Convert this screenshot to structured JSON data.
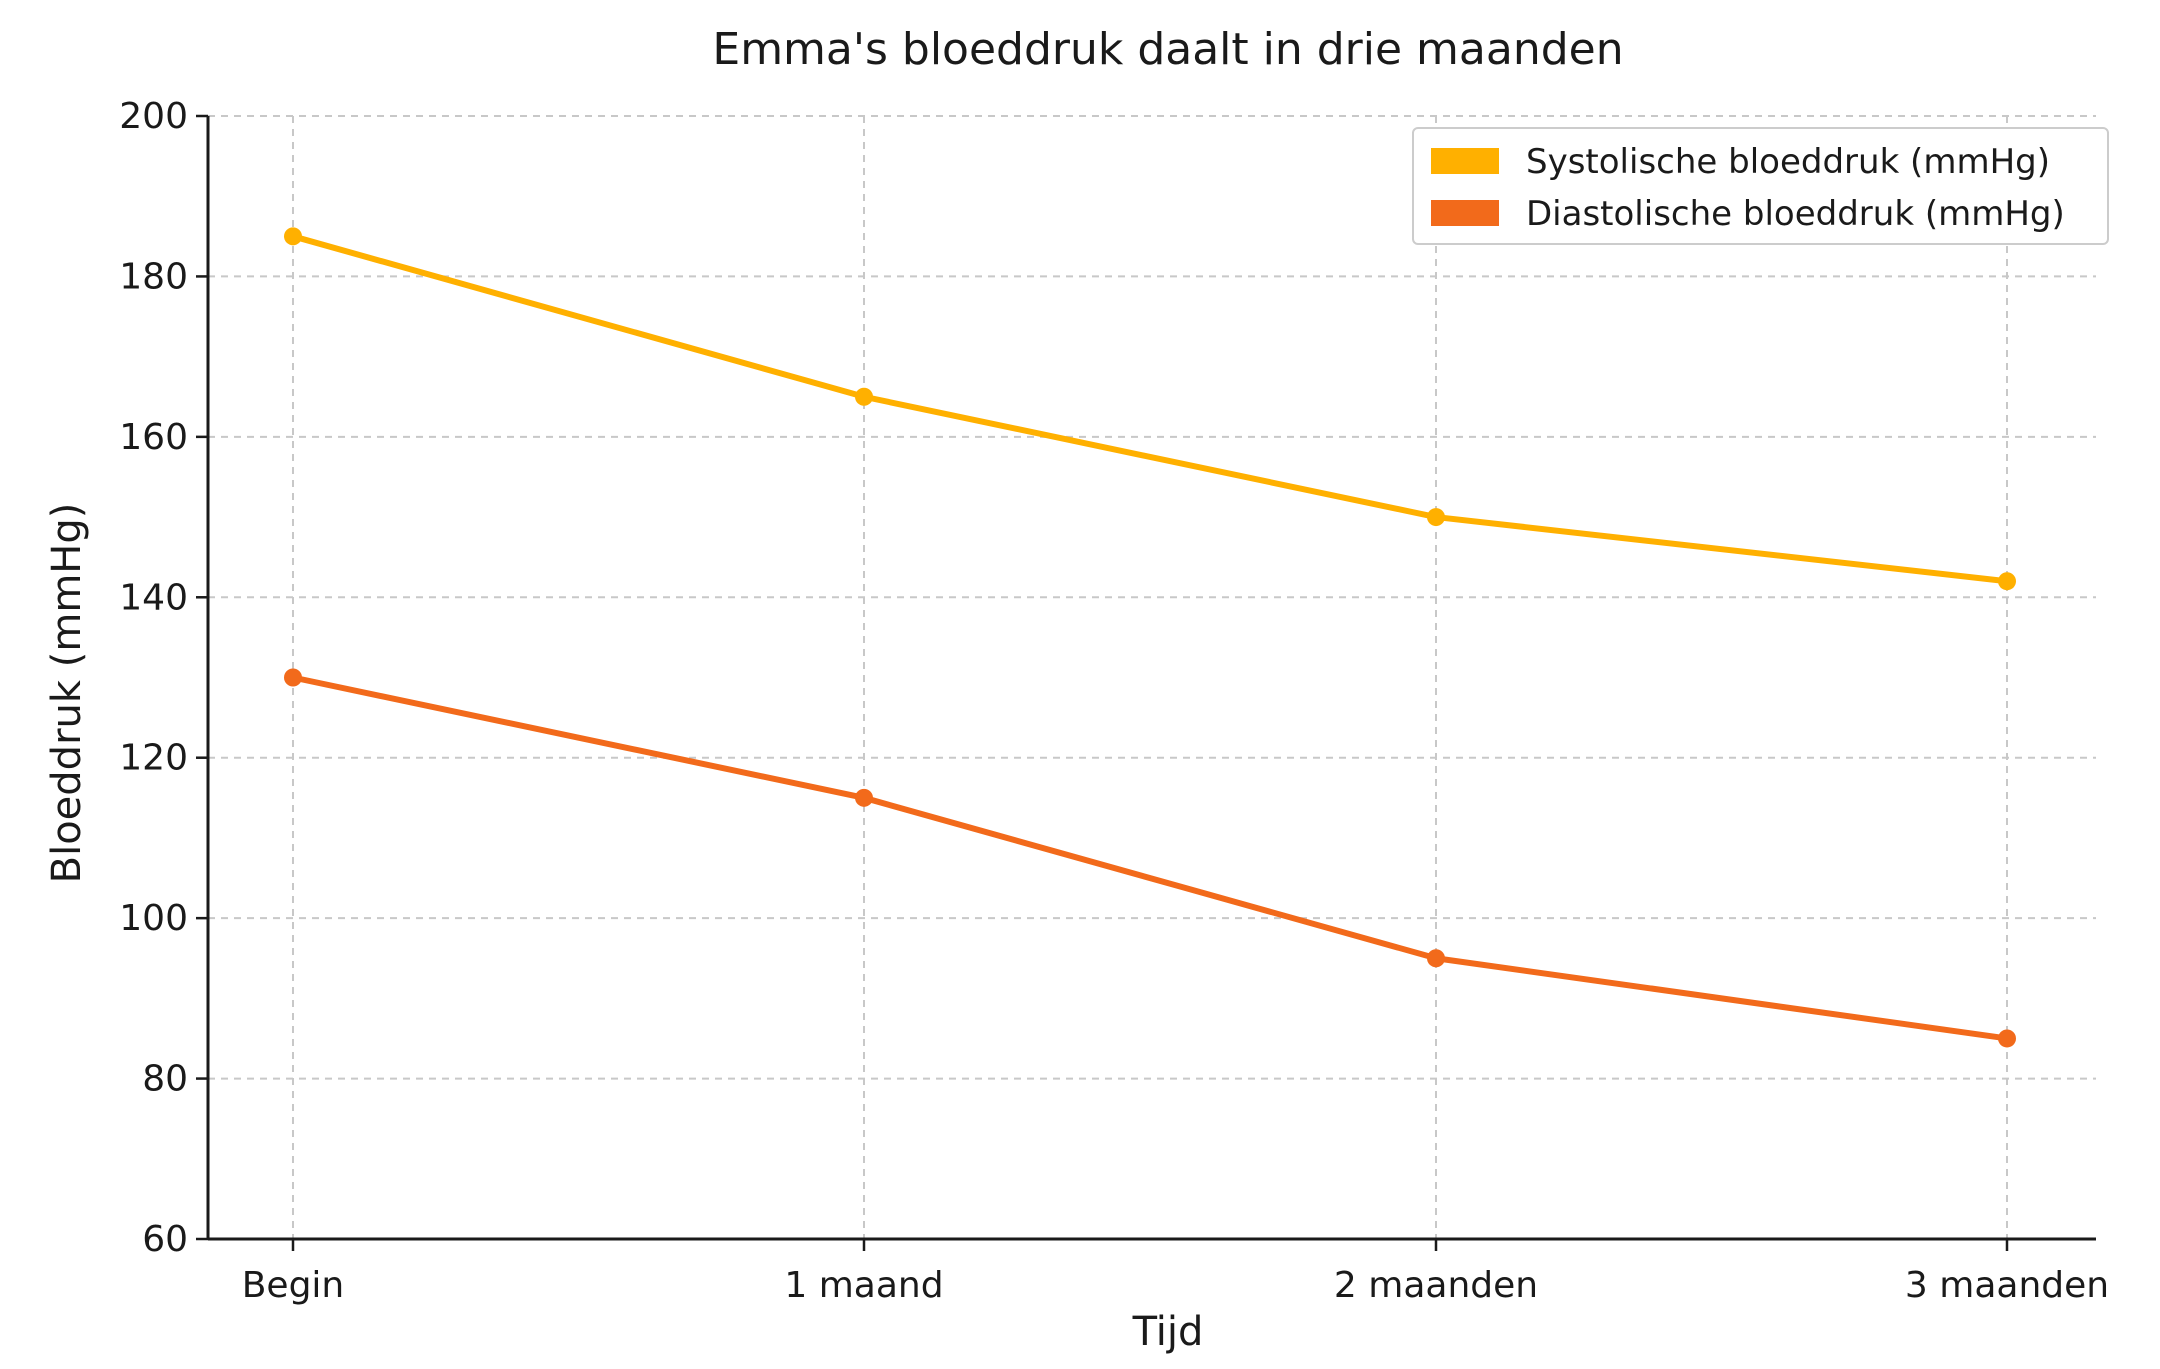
{
  "chart_data": {
    "type": "line",
    "title": "Emma's bloeddruk daalt in drie maanden",
    "xlabel": "Tijd",
    "ylabel": "Bloeddruk (mmHg)",
    "categories": [
      "Begin",
      "1 maand",
      "2 maanden",
      "3 maanden"
    ],
    "ylim": [
      60,
      200
    ],
    "yticks": [
      60,
      80,
      100,
      120,
      140,
      160,
      180,
      200
    ],
    "grid": true,
    "legend_position": "top-right",
    "series": [
      {
        "name": "Systolische bloeddruk (mmHg)",
        "color": "#FFB000",
        "values": [
          185,
          165,
          150,
          142
        ]
      },
      {
        "name": "Diastolische bloeddruk (mmHg)",
        "color": "#F26A1B",
        "values": [
          130,
          115,
          95,
          85
        ]
      }
    ]
  }
}
